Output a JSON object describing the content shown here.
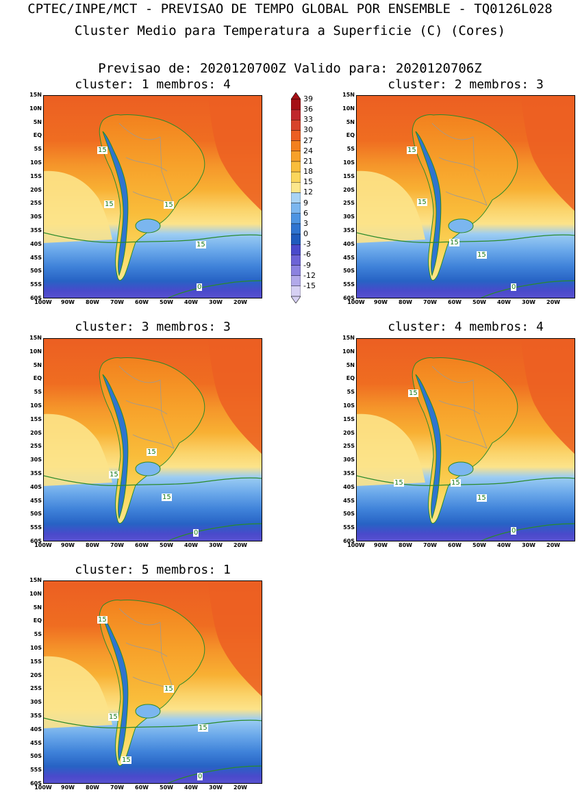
{
  "header": {
    "line1": "CPTEC/INPE/MCT - PREVISAO DE TEMPO GLOBAL POR ENSEMBLE - TQ0126L028",
    "line2": "Cluster Medio para Temperatura a Superficie (C) (Cores)",
    "line3": "Previsao de: 2020120700Z    Valido para: 2020120706Z"
  },
  "panels": [
    {
      "title": "cluster: 1   membros: 4"
    },
    {
      "title": "cluster: 2   membros: 3"
    },
    {
      "title": "cluster: 3   membros: 3"
    },
    {
      "title": "cluster: 4   membros: 4"
    },
    {
      "title": "cluster: 5   membros: 1"
    }
  ],
  "axes": {
    "lat_ticks": [
      "15N",
      "10N",
      "5N",
      "EQ",
      "5S",
      "10S",
      "15S",
      "20S",
      "25S",
      "30S",
      "35S",
      "40S",
      "45S",
      "50S",
      "55S",
      "60S"
    ],
    "lon_ticks": [
      "100W",
      "90W",
      "80W",
      "70W",
      "60W",
      "50W",
      "40W",
      "30W",
      "20W"
    ]
  },
  "contour_labels": {
    "p0": [
      "15",
      "15",
      "15",
      "15",
      "0"
    ],
    "p1": [
      "15",
      "15",
      "15",
      "15",
      "0"
    ],
    "p2": [
      "15",
      "15",
      "15",
      "0"
    ],
    "p3": [
      "15",
      "15",
      "15",
      "15",
      "0"
    ],
    "p4": [
      "15",
      "15",
      "15",
      "15",
      "15",
      "0"
    ]
  },
  "colorbar": {
    "labels": [
      "39",
      "36",
      "33",
      "30",
      "27",
      "24",
      "21",
      "18",
      "15",
      "12",
      "9",
      "6",
      "3",
      "0",
      "-3",
      "-6",
      "-9",
      "-12",
      "-15"
    ],
    "colors": [
      "#a50f15",
      "#c0282d",
      "#d7442b",
      "#ec5f22",
      "#f2801e",
      "#f7a12a",
      "#f9bd3b",
      "#fbd65c",
      "#fce78c",
      "#a8d3f5",
      "#7bb6ef",
      "#4d94e2",
      "#2f74d0",
      "#1f5bbd",
      "#4a4acb",
      "#6d63d6",
      "#8c82e0",
      "#b2a9ea",
      "#d6d0f3"
    ]
  }
}
